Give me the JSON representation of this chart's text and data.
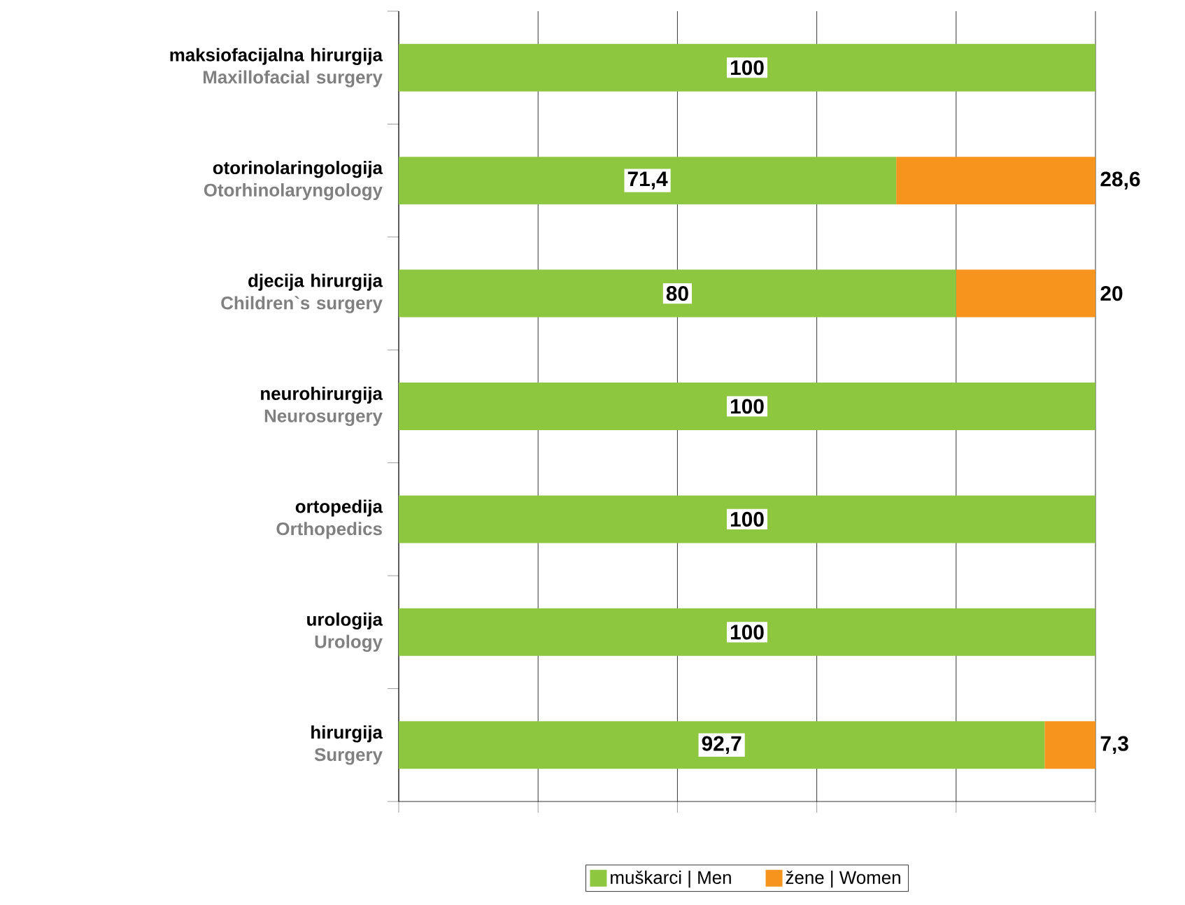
{
  "chart_data": {
    "type": "bar",
    "orientation": "horizontal",
    "stacked": true,
    "categories": [
      "**maksiofacijalna hirurgija** Maxillofacial surgery",
      "**otorinolaringologija** Otorhinolaryngology",
      "**djecija hirurgija** Children`s surgery",
      "**neurohirurgija** Neurosurgery",
      "**ortopedija** Orthopedics",
      "**urologija** Urology",
      "**hirurgija** Surgery"
    ],
    "series": [
      {
        "name": "muškarci | Men",
        "color": "#8dc63f",
        "values": [
          100,
          71.4,
          80,
          100,
          100,
          100,
          92.7
        ],
        "value_labels": [
          "100",
          "71,4",
          "80",
          "100",
          "100",
          "100",
          "92,7"
        ]
      },
      {
        "name": "žene | Women",
        "color": "#f7941d",
        "values": [
          0,
          28.6,
          20,
          0,
          0,
          0,
          7.3
        ],
        "value_labels": [
          null,
          "28,6",
          "20",
          null,
          null,
          null,
          "7,3"
        ]
      }
    ],
    "xlim": [
      0,
      100
    ],
    "xticks": [
      {
        "value": 0,
        "label": null
      },
      {
        "value": 20,
        "label": null
      },
      {
        "value": 40,
        "label": null
      },
      {
        "value": 60,
        "label": null
      },
      {
        "value": 80,
        "label": null
      },
      {
        "value": 100,
        "label": null
      }
    ],
    "tick_labels": "y",
    "grid": "x",
    "legend": "bottom"
  }
}
